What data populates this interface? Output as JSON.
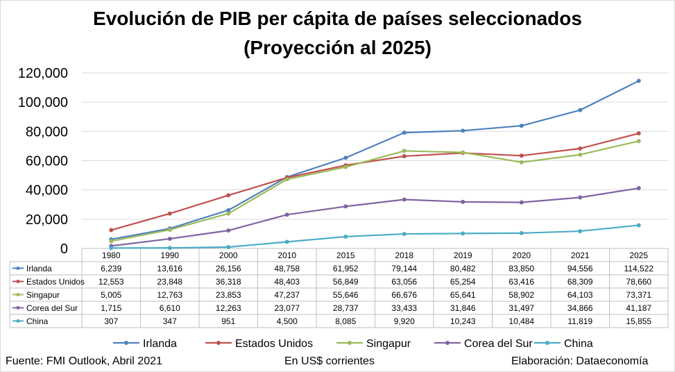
{
  "chart_data": {
    "type": "line",
    "title": "Evolución de PIB per cápita de países seleccionados",
    "subtitle": "(Proyección al 2025)",
    "categories": [
      "1980",
      "1990",
      "2000",
      "2010",
      "2015",
      "2018",
      "2019",
      "2020",
      "2021",
      "2025"
    ],
    "ylim": [
      0,
      120000
    ],
    "yticks": [
      "0",
      "20,000",
      "40,000",
      "60,000",
      "80,000",
      "100,000",
      "120,000"
    ],
    "grid": true,
    "legend_placement": "bottom",
    "series": [
      {
        "name": "Irlanda",
        "color": "#4f81bd",
        "values": [
          6239,
          13616,
          26156,
          48758,
          61952,
          79144,
          80482,
          83850,
          94556,
          114522
        ],
        "labels": [
          "6,239",
          "13,616",
          "26,156",
          "48,758",
          "61,952",
          "79,144",
          "80,482",
          "83,850",
          "94,556",
          "114,522"
        ]
      },
      {
        "name": "Estados Unidos",
        "color": "#c0504d",
        "values": [
          12553,
          23848,
          36318,
          48403,
          56849,
          63056,
          65254,
          63416,
          68309,
          78660
        ],
        "labels": [
          "12,553",
          "23,848",
          "36,318",
          "48,403",
          "56,849",
          "63,056",
          "65,254",
          "63,416",
          "68,309",
          "78,660"
        ]
      },
      {
        "name": "Singapur",
        "color": "#9bbb59",
        "values": [
          5005,
          12763,
          23853,
          47237,
          55646,
          66676,
          65641,
          58902,
          64103,
          73371
        ],
        "labels": [
          "5,005",
          "12,763",
          "23,853",
          "47,237",
          "55,646",
          "66,676",
          "65,641",
          "58,902",
          "64,103",
          "73,371"
        ]
      },
      {
        "name": "Corea del Sur",
        "color": "#8064a2",
        "values": [
          1715,
          6610,
          12263,
          23077,
          28737,
          33433,
          31846,
          31497,
          34866,
          41187
        ],
        "labels": [
          "1,715",
          "6,610",
          "12,263",
          "23,077",
          "28,737",
          "33,433",
          "31,846",
          "31,497",
          "34,866",
          "41,187"
        ]
      },
      {
        "name": "China",
        "color": "#4bacc6",
        "values": [
          307,
          347,
          951,
          4500,
          8085,
          9920,
          10243,
          10484,
          11819,
          15855
        ],
        "labels": [
          "307",
          "347",
          "951",
          "4,500",
          "8,085",
          "9,920",
          "10,243",
          "10,484",
          "11,819",
          "15,855"
        ]
      }
    ]
  },
  "footer": {
    "source": "Fuente: FMI Outlook, Abril 2021",
    "units": "En US$ corrientes",
    "credit": "Elaboración: Dataeconomía"
  }
}
